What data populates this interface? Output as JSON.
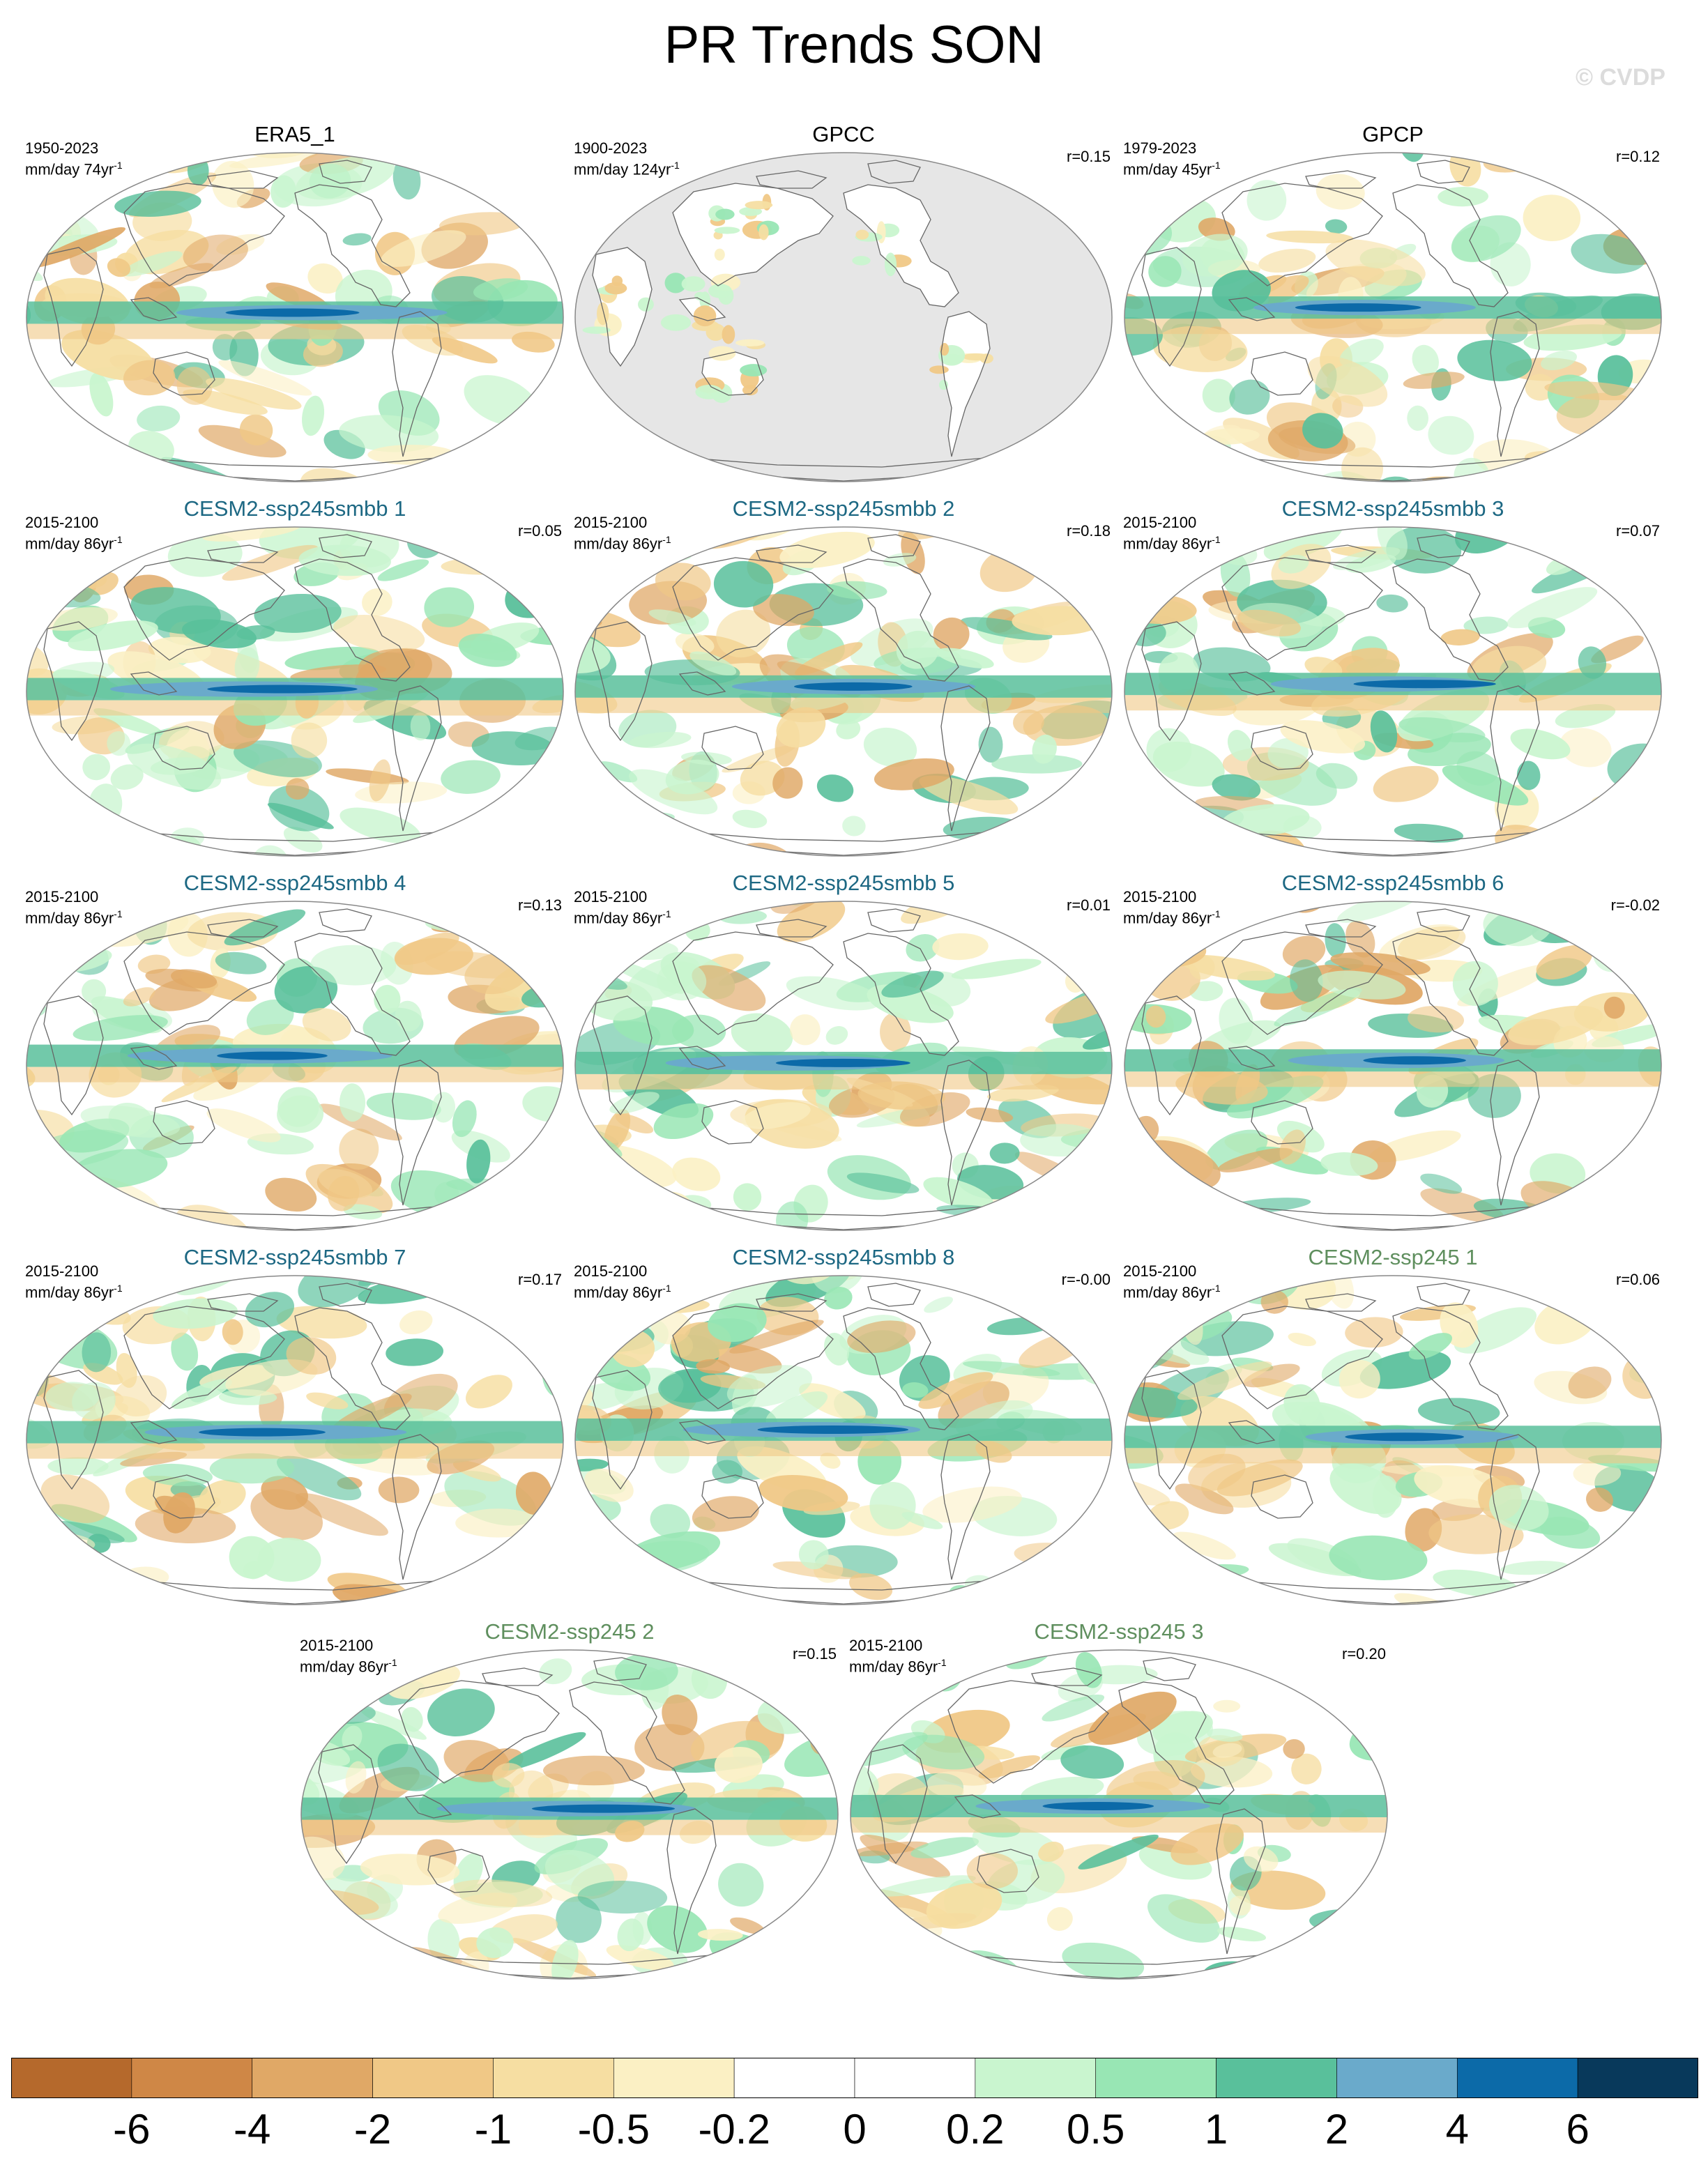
{
  "title": "PR Trends SON",
  "watermark": "© CVDP",
  "panels": [
    {
      "title": "ERA5_1",
      "kind": "obs",
      "period": "1950-2023",
      "units_main": "mm/day 74yr",
      "units_sup": "-1",
      "r": "",
      "land_only": false
    },
    {
      "title": "GPCC",
      "kind": "obs",
      "period": "1900-2023",
      "units_main": "mm/day 124yr",
      "units_sup": "-1",
      "r": "r=0.15",
      "land_only": true
    },
    {
      "title": "GPCP",
      "kind": "obs",
      "period": "1979-2023",
      "units_main": "mm/day 45yr",
      "units_sup": "-1",
      "r": "r=0.12",
      "land_only": false
    },
    {
      "title": "CESM2-ssp245smbb 1",
      "kind": "smbb",
      "period": "2015-2100",
      "units_main": "mm/day 86yr",
      "units_sup": "-1",
      "r": "r=0.05",
      "land_only": false
    },
    {
      "title": "CESM2-ssp245smbb 2",
      "kind": "smbb",
      "period": "2015-2100",
      "units_main": "mm/day 86yr",
      "units_sup": "-1",
      "r": "r=0.18",
      "land_only": false
    },
    {
      "title": "CESM2-ssp245smbb 3",
      "kind": "smbb",
      "period": "2015-2100",
      "units_main": "mm/day 86yr",
      "units_sup": "-1",
      "r": "r=0.07",
      "land_only": false
    },
    {
      "title": "CESM2-ssp245smbb 4",
      "kind": "smbb",
      "period": "2015-2100",
      "units_main": "mm/day 86yr",
      "units_sup": "-1",
      "r": "r=0.13",
      "land_only": false
    },
    {
      "title": "CESM2-ssp245smbb 5",
      "kind": "smbb",
      "period": "2015-2100",
      "units_main": "mm/day 86yr",
      "units_sup": "-1",
      "r": "r=0.01",
      "land_only": false
    },
    {
      "title": "CESM2-ssp245smbb 6",
      "kind": "smbb",
      "period": "2015-2100",
      "units_main": "mm/day 86yr",
      "units_sup": "-1",
      "r": "r=-0.02",
      "land_only": false
    },
    {
      "title": "CESM2-ssp245smbb 7",
      "kind": "smbb",
      "period": "2015-2100",
      "units_main": "mm/day 86yr",
      "units_sup": "-1",
      "r": "r=0.17",
      "land_only": false
    },
    {
      "title": "CESM2-ssp245smbb 8",
      "kind": "smbb",
      "period": "2015-2100",
      "units_main": "mm/day 86yr",
      "units_sup": "-1",
      "r": "r=-0.00",
      "land_only": false
    },
    {
      "title": "CESM2-ssp245 1",
      "kind": "ssp",
      "period": "2015-2100",
      "units_main": "mm/day 86yr",
      "units_sup": "-1",
      "r": "r=0.06",
      "land_only": false
    },
    {
      "title": "CESM2-ssp245 2",
      "kind": "ssp",
      "period": "2015-2100",
      "units_main": "mm/day 86yr",
      "units_sup": "-1",
      "r": "r=0.15",
      "land_only": false
    },
    {
      "title": "CESM2-ssp245 3",
      "kind": "ssp",
      "period": "2015-2100",
      "units_main": "mm/day 86yr",
      "units_sup": "-1",
      "r": "r=0.20",
      "land_only": false
    }
  ],
  "colorbar": {
    "labels": [
      "-6",
      "-4",
      "-2",
      "-1",
      "-0.5",
      "-0.2",
      "0",
      "0.2",
      "0.5",
      "1",
      "2",
      "4",
      "6"
    ],
    "colors": [
      "#b5692c",
      "#cf8746",
      "#e0a866",
      "#f0c886",
      "#f6dea2",
      "#fbf0c4",
      "#ffffff",
      "#ffffff",
      "#c9f5cf",
      "#98e6b4",
      "#59c09b",
      "#6aaacb",
      "#0c6aa8",
      "#08395b"
    ]
  },
  "map_colors": {
    "land_mask": "#e6e6e6",
    "coast": "#666666",
    "border": "#888888"
  }
}
